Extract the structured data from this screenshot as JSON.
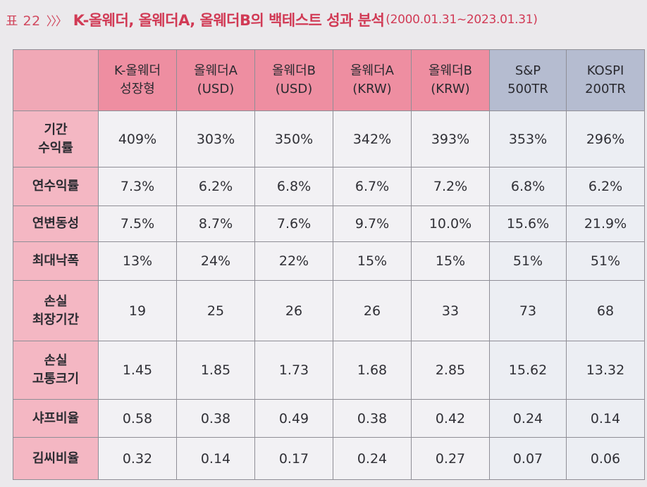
{
  "title": {
    "label": "표 22",
    "chevrons": "〉〉〉",
    "text": "K-올웨더, 올웨더A, 올웨더B의 백테스트 성과 분석",
    "period": "(2000.01.31~2023.01.31)"
  },
  "table": {
    "columns": [
      "K-올웨더\n성장형",
      "올웨더A\n(USD)",
      "올웨더B\n(USD)",
      "올웨더A\n(KRW)",
      "올웨더B\n(KRW)",
      "S&P\n500TR",
      "KOSPI\n200TR"
    ],
    "rows": [
      {
        "label": "기간\n수익률",
        "values": [
          "409%",
          "303%",
          "350%",
          "342%",
          "393%",
          "353%",
          "296%"
        ]
      },
      {
        "label": "연수익률",
        "values": [
          "7.3%",
          "6.2%",
          "6.8%",
          "6.7%",
          "7.2%",
          "6.8%",
          "6.2%"
        ]
      },
      {
        "label": "연변동성",
        "values": [
          "7.5%",
          "8.7%",
          "7.6%",
          "9.7%",
          "10.0%",
          "15.6%",
          "21.9%"
        ]
      },
      {
        "label": "최대낙폭",
        "values": [
          "13%",
          "24%",
          "22%",
          "15%",
          "15%",
          "51%",
          "51%"
        ]
      },
      {
        "label": "손실\n최장기간",
        "values": [
          "19",
          "25",
          "26",
          "26",
          "33",
          "73",
          "68"
        ]
      },
      {
        "label": "손실\n고통크기",
        "values": [
          "1.45",
          "1.85",
          "1.73",
          "1.68",
          "2.85",
          "15.62",
          "13.32"
        ]
      },
      {
        "label": "샤프비율",
        "values": [
          "0.58",
          "0.38",
          "0.49",
          "0.38",
          "0.42",
          "0.24",
          "0.14"
        ]
      },
      {
        "label": "김씨비율",
        "values": [
          "0.32",
          "0.14",
          "0.17",
          "0.24",
          "0.27",
          "0.07",
          "0.06"
        ]
      }
    ]
  },
  "colors": {
    "accent": "#d13a55",
    "header": "#ee8ea1",
    "row_header": "#f4b7c3",
    "benchmark_header": "#b5bcd0"
  }
}
